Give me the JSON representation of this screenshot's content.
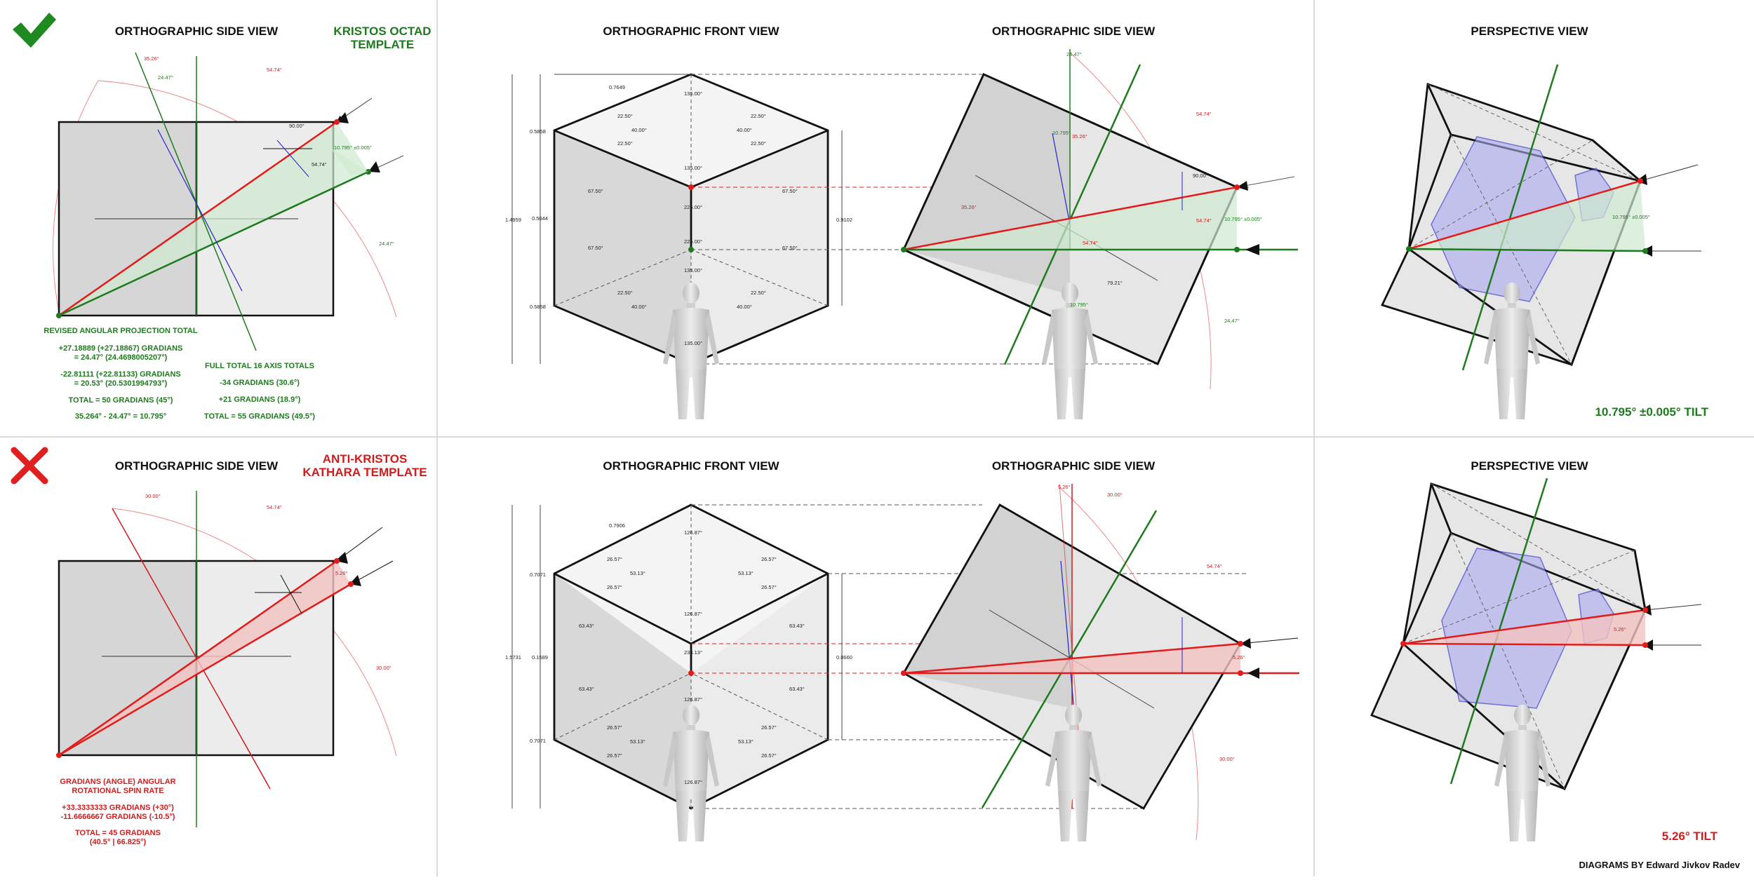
{
  "colors": {
    "green": "#1f7a1f",
    "red": "#d01c1c",
    "blue": "#2424c8",
    "text": "#111111",
    "cube_dark": "#d6d6d6",
    "cube_light": "#ececec",
    "grid": "#bcbcbc"
  },
  "icons": {
    "good": "checkmark-icon",
    "bad": "cross-icon"
  },
  "top": {
    "side_title": "ORTHOGRAPHIC SIDE VIEW",
    "template_line1": "KRISTOS OCTAD",
    "template_line2": "TEMPLATE",
    "front_title": "ORTHOGRAPHIC FRONT VIEW",
    "side2_title": "ORTHOGRAPHIC SIDE VIEW",
    "persp_title": "PERSPECTIVE VIEW",
    "notes": {
      "revised": "REVISED ANGULAR PROJECTION TOTAL",
      "l1": "+27.18889 (+27.18867) GRADIANS",
      "l2": "= 24.47° (24.4698005207°)",
      "l3": "-22.81111 (+22.81133) GRADIANS",
      "l4": "= 20.53° (20.5301994793°)",
      "l5": "TOTAL = 50 GRADIANS (45°)",
      "l6": "35.264° - 24.47° = 10.795°",
      "full": "FULL TOTAL 16 AXIS TOTALS",
      "r1": "-34 GRADIANS (30.6°)",
      "r2": "+21 GRADIANS (18.9°)",
      "r3": "TOTAL = 55 GRADIANS (49.5°)"
    },
    "side_angles": {
      "a1": "35.26°",
      "a2": "24.47°",
      "a3": "54.74°",
      "a4": "90.00°",
      "a5": "54.74°",
      "a6": "10.795° ±0.005°",
      "a7": "24.47°"
    },
    "front_dims": {
      "d1": "0.7649",
      "d2": "0.5858",
      "d3": "1.4959",
      "d4": "0.5044",
      "d5": "0.5858",
      "d6": "0.9102"
    },
    "front_angles": {
      "top": "135.00°",
      "c1": "135.00°",
      "c2": "225.00°",
      "c3": "225.00°",
      "c4": "135.00°",
      "bottom": "135.00°",
      "a22": "22.50°",
      "a40": "40.00°",
      "a67": "67.50°"
    },
    "side2_angles": {
      "b1": "24.47°",
      "b2": "54.74°",
      "b3": "10.795°",
      "b4": "35.26°",
      "b5": "35.26°",
      "b6": "90.00°",
      "b7": "54.74°",
      "b8": "10.795° ±0.005°",
      "b9": "54.74°",
      "b10": "79.21°",
      "b11": "10.795°",
      "b12": "24.47°"
    },
    "tilt": "10.795° ±0.005° TILT",
    "persp_small": "10.795° ±0.005°"
  },
  "bottom": {
    "side_title": "ORTHOGRAPHIC SIDE VIEW",
    "template_line1": "ANTI-KRISTOS",
    "template_line2": "KATHARA TEMPLATE",
    "front_title": "ORTHOGRAPHIC FRONT VIEW",
    "side2_title": "ORTHOGRAPHIC SIDE VIEW",
    "persp_title": "PERSPECTIVE VIEW",
    "notes": {
      "n1": "GRADIANS (ANGLE) ANGULAR",
      "n2": "ROTATIONAL SPIN RATE",
      "n3": "+33.3333333 GRADIANS (+30°)",
      "n4": "-11.6666667 GRADIANS (-10.5°)",
      "n5": "TOTAL = 45 GRADIANS",
      "n6": "(40.5° | 66.825°)"
    },
    "side_angles": {
      "a1": "30.00°",
      "a2": "54.74°",
      "a3": "5.26°",
      "a4": "30.00°"
    },
    "front_dims": {
      "d1": "0.7906",
      "d2": "0.7071",
      "d3": "1.5731",
      "d4": "0.1589",
      "d5": "0.7071",
      "d6": "0.8660"
    },
    "front_angles": {
      "top": "126.87°",
      "c1": "126.87°",
      "c2": "233.13°",
      "c3": "126.87°",
      "bottom": "126.87°",
      "a26": "26.57°",
      "a53": "53.13°",
      "a63": "63.43°"
    },
    "side2_angles": {
      "b1": "5.26°",
      "b2": "30.00°",
      "b3": "54.74°",
      "b4": "5.26°",
      "b5": "30.00°"
    },
    "tilt": "5.26° TILT",
    "persp_small": "5.26°"
  },
  "credit": "DIAGRAMS BY Edward Jivkov Radev"
}
